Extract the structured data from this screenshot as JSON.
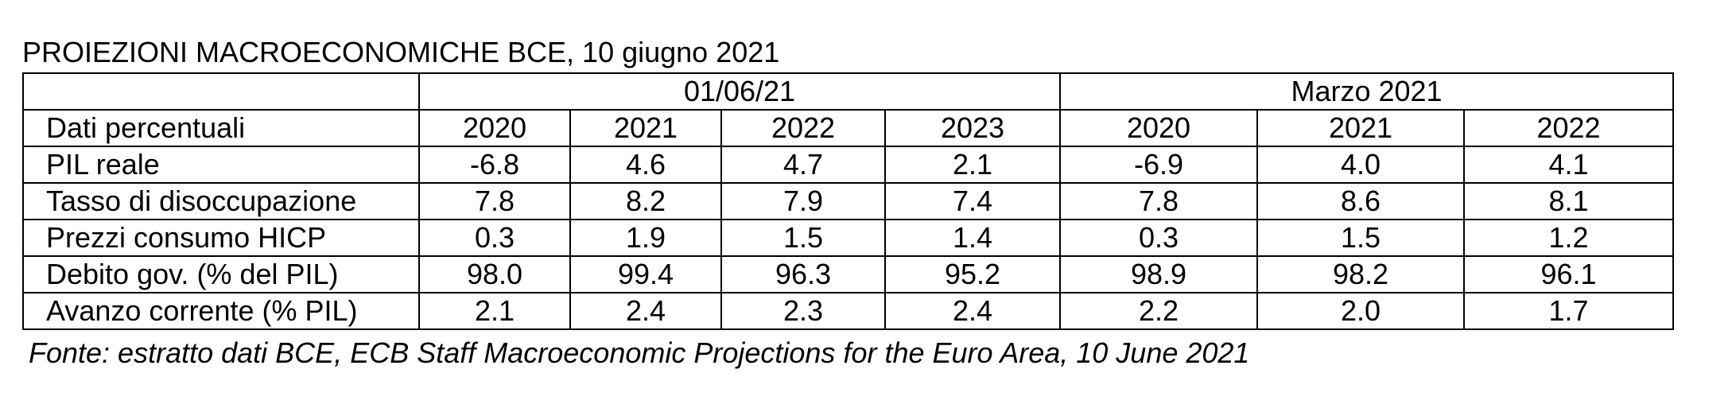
{
  "title": "PROIEZIONI MACROECONOMICHE BCE, 10 giugno 2021",
  "table": {
    "groups": [
      {
        "label": "01/06/21"
      },
      {
        "label": "Marzo 2021"
      }
    ],
    "corner_label": "Dati percentuali",
    "years": [
      "2020",
      "2021",
      "2022",
      "2023",
      "2020",
      "2021",
      "2022"
    ],
    "rows": [
      {
        "label": "PIL reale",
        "values": [
          "-6.8",
          "4.6",
          "4.7",
          "2.1",
          "-6.9",
          "4.0",
          "4.1"
        ]
      },
      {
        "label": "Tasso di disoccupazione",
        "values": [
          "7.8",
          "8.2",
          "7.9",
          "7.4",
          "7.8",
          "8.6",
          "8.1"
        ]
      },
      {
        "label": "Prezzi consumo HICP",
        "values": [
          "0.3",
          "1.9",
          "1.5",
          "1.4",
          "0.3",
          "1.5",
          "1.2"
        ]
      },
      {
        "label": "Debito gov.  (% del PIL)",
        "values": [
          "98.0",
          "99.4",
          "96.3",
          "95.2",
          "98.9",
          "98.2",
          "96.1"
        ]
      },
      {
        "label": "Avanzo corrente (% PIL)",
        "values": [
          "2.1",
          "2.4",
          "2.3",
          "2.4",
          "2.2",
          "2.0",
          "1.7"
        ]
      }
    ]
  },
  "source": "Fonte: estratto dati BCE, ECB Staff Macroeconomic Projections for the Euro Area, 10 June 2021"
}
